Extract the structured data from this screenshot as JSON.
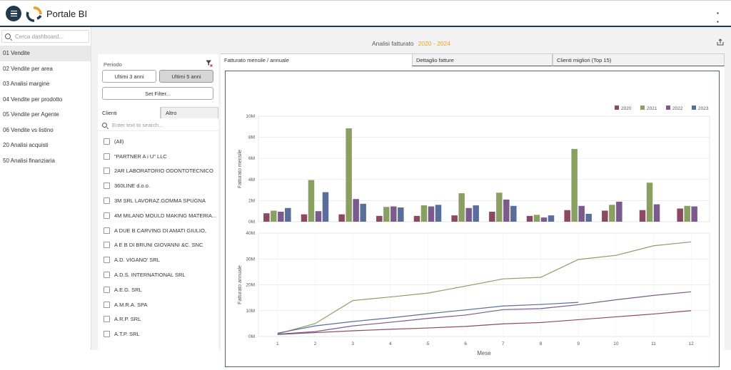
{
  "app": {
    "title": "Portale BI"
  },
  "sidebar": {
    "search_placeholder": "Cerca dashboard...",
    "items": [
      {
        "label": "01 Vendite",
        "active": true
      },
      {
        "label": "02 Vendite per area"
      },
      {
        "label": "03 Analisi margine"
      },
      {
        "label": "04 Vendite per prodotto"
      },
      {
        "label": "05 Vendite per Agente"
      },
      {
        "label": "06 Vendite vs listino"
      },
      {
        "label": "20 Analisi acquisti"
      },
      {
        "label": "50 Analisi finanziaria"
      }
    ]
  },
  "page": {
    "title": "Analisi fatturato",
    "year_range": "2020 - 2024"
  },
  "filter": {
    "period_label": "Periodo",
    "btn_3y": "Ultimi 3 anni",
    "btn_5y": "Ultimi 5 anni",
    "btn_set": "Set Filter...",
    "tab_clients": "Clienti",
    "tab_other": "Altro",
    "search_placeholder": "Enter text to search...",
    "clients": [
      "(All)",
      "\"PARTNER A i U\" LLC",
      "2AR LABORATORIO ODONTOTECNICO",
      "360LINE d.o.o.",
      "3M SRL LAVORAZ.GOMMA SPUGNA",
      "4M MILANO MOULD MAKING MATERIA...",
      "A DUE B CARVING DI AMATI GIULIO,",
      "A E B DI BRUNI GIOVANNI &C. SNC",
      "A.D. VIGANO' SRL",
      "A.D.S. INTERNATIONAL SRL",
      "A.E.G. SRL",
      "A.M.R.A. SPA",
      "A.R.P. SRL",
      "A.T.P. SRL"
    ]
  },
  "tabs": {
    "monthly": "Fatturato mensile / annuale",
    "detail": "Dettaglio fatture",
    "top": "Clienti migliori (Top 15)"
  },
  "colors": {
    "2020": "#8b4a62",
    "2021": "#8aa063",
    "2022": "#7b5a8e",
    "2023": "#5a6e9c",
    "accent": "#f0a020",
    "header": "#1f3b4d"
  },
  "chart_data": [
    {
      "type": "bar",
      "ylabel": "Fatturato mensile",
      "ylim": [
        0,
        10
      ],
      "yticks": [
        "0M",
        "2M",
        "4M",
        "6M",
        "8M",
        "10M"
      ],
      "categories": [
        "1",
        "2",
        "3",
        "4",
        "5",
        "6",
        "7",
        "8",
        "9",
        "10",
        "11",
        "12"
      ],
      "legend": "top-right",
      "series": [
        {
          "name": "2020",
          "values": [
            0.8,
            0.7,
            0.7,
            0.55,
            0.55,
            0.6,
            0.95,
            0.55,
            1.1,
            1.05,
            1.1,
            1.25
          ]
        },
        {
          "name": "2021",
          "values": [
            1.05,
            3.95,
            8.85,
            1.4,
            1.55,
            2.7,
            2.75,
            0.65,
            6.9,
            1.6,
            3.7,
            1.5
          ]
        },
        {
          "name": "2022",
          "values": [
            0.95,
            1.0,
            2.15,
            1.45,
            1.45,
            1.3,
            2.1,
            0.4,
            1.5,
            1.9,
            1.65,
            1.45
          ]
        },
        {
          "name": "2023",
          "values": [
            1.3,
            2.8,
            1.7,
            1.35,
            1.6,
            1.55,
            1.5,
            0.6,
            0.75,
            null,
            null,
            null
          ]
        }
      ]
    },
    {
      "type": "line",
      "ylabel": "Fatturato annuale",
      "xlabel": "Mese",
      "ylim": [
        0,
        40
      ],
      "yticks": [
        "0M",
        "10M",
        "20M",
        "30M",
        "40M"
      ],
      "categories": [
        "1",
        "2",
        "3",
        "4",
        "5",
        "6",
        "7",
        "8",
        "9",
        "10",
        "11",
        "12"
      ],
      "series": [
        {
          "name": "2020",
          "values": [
            0.8,
            1.5,
            2.2,
            2.8,
            3.3,
            3.9,
            4.9,
            5.4,
            6.5,
            7.6,
            8.7,
            10.0
          ]
        },
        {
          "name": "2021",
          "values": [
            1.0,
            5.0,
            13.9,
            15.3,
            16.8,
            19.5,
            22.3,
            22.9,
            29.8,
            31.4,
            35.1,
            36.6
          ]
        },
        {
          "name": "2022",
          "values": [
            0.9,
            1.9,
            4.1,
            5.5,
            7.0,
            8.3,
            10.4,
            10.8,
            12.3,
            14.2,
            15.9,
            17.3
          ]
        },
        {
          "name": "2023",
          "values": [
            1.3,
            4.1,
            5.8,
            7.2,
            8.8,
            10.3,
            11.8,
            12.4,
            13.2,
            null,
            null,
            null
          ]
        }
      ]
    }
  ]
}
